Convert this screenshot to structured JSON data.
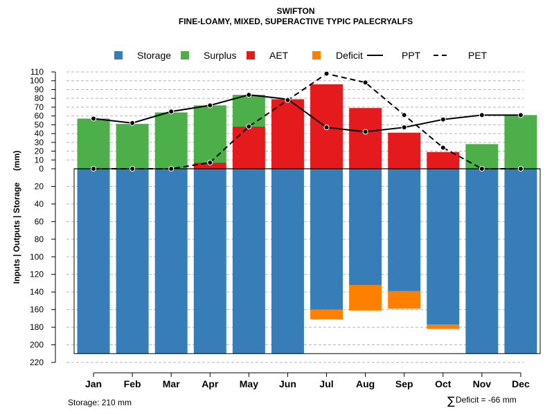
{
  "chart_data": {
    "type": "bar",
    "title": "SWIFTON",
    "subtitle": "FINE-LOAMY, MIXED, SUPERACTIVE TYPIC PALECRYALFS",
    "ylabel": "Inputs | Outputs | Storage     (mm)",
    "categories": [
      "Jan",
      "Feb",
      "Mar",
      "Apr",
      "May",
      "Jun",
      "Jul",
      "Aug",
      "Sep",
      "Oct",
      "Nov",
      "Dec"
    ],
    "ylim_top": [
      0,
      110
    ],
    "ylim_bottom": [
      0,
      220
    ],
    "upper_ticks": [
      "110",
      "100",
      "90",
      "80",
      "70",
      "60",
      "50",
      "40",
      "30",
      "20",
      "10",
      "0"
    ],
    "lower_ticks": [
      "20",
      "40",
      "60",
      "80",
      "100",
      "120",
      "140",
      "160",
      "180",
      "200",
      "220"
    ],
    "legend": [
      {
        "name": "Storage",
        "kind": "box",
        "color": "#377EB8"
      },
      {
        "name": "Surplus",
        "kind": "box",
        "color": "#4DAF4A"
      },
      {
        "name": "AET",
        "kind": "box",
        "color": "#E41A1C"
      },
      {
        "name": "Deficit",
        "kind": "box",
        "color": "#FF7F00"
      },
      {
        "name": "PPT",
        "kind": "solid-line",
        "color": "#000000"
      },
      {
        "name": "PET",
        "kind": "dashed-line",
        "color": "#000000"
      }
    ],
    "series": [
      {
        "name": "AET",
        "color": "#E41A1C",
        "values": [
          0,
          0,
          0,
          7,
          48,
          79,
          96,
          69,
          41,
          19,
          0,
          0
        ]
      },
      {
        "name": "Surplus",
        "color": "#4DAF4A",
        "values": [
          57,
          51,
          64,
          65,
          36,
          0,
          0,
          0,
          0,
          0,
          28,
          61
        ]
      },
      {
        "name": "Storage",
        "color": "#377EB8",
        "values": [
          210,
          210,
          210,
          210,
          210,
          210,
          160,
          132,
          139,
          177,
          210,
          210
        ]
      },
      {
        "name": "Deficit",
        "color": "#FF7F00",
        "values": [
          0,
          0,
          0,
          0,
          0,
          0,
          11,
          29,
          20,
          5,
          0,
          0
        ]
      },
      {
        "name": "PPT",
        "color": "#000000",
        "values": [
          57,
          52,
          65,
          72,
          84,
          79,
          47,
          42,
          47,
          56,
          61,
          61
        ]
      },
      {
        "name": "PET",
        "color": "#000000",
        "values": [
          0,
          0,
          0,
          7,
          48,
          78,
          108,
          98,
          61,
          24,
          0,
          0
        ]
      }
    ],
    "storage_capacity": 210,
    "notes": {
      "storage": "Storage: 210 mm",
      "deficit_symbol": "∑",
      "deficit": "Deficit = -66 mm"
    }
  }
}
